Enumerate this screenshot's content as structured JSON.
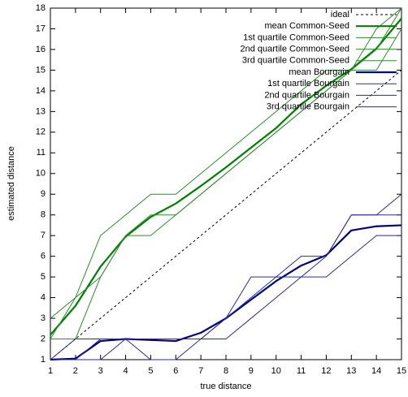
{
  "chart_data": {
    "type": "line",
    "x_label": "true distance",
    "y_label": "estimated distance",
    "x": [
      1,
      2,
      3,
      4,
      5,
      6,
      7,
      8,
      9,
      10,
      11,
      12,
      13,
      14,
      15
    ],
    "xlim": [
      1,
      15
    ],
    "ylim": [
      1,
      18
    ],
    "xticks": [
      1,
      2,
      3,
      4,
      5,
      6,
      7,
      8,
      9,
      10,
      11,
      12,
      13,
      14,
      15
    ],
    "yticks": [
      1,
      2,
      3,
      4,
      5,
      6,
      7,
      8,
      9,
      10,
      11,
      12,
      13,
      14,
      15,
      16,
      17,
      18
    ],
    "legend": "top-right",
    "series": [
      {
        "name": "ideal",
        "color": "#000000",
        "dashed": true,
        "width": 1,
        "values": [
          1,
          2,
          3,
          4,
          5,
          6,
          7,
          8,
          9,
          10,
          11,
          12,
          13,
          14,
          15
        ]
      },
      {
        "name": "mean Common-Seed",
        "color": "#008000",
        "width": 2.2,
        "values": [
          2.2,
          3.6,
          5.5,
          6.95,
          7.9,
          8.55,
          9.4,
          10.3,
          11.25,
          12.2,
          13.35,
          14.25,
          15.05,
          16.05,
          17.5
        ]
      },
      {
        "name": "1st quartile Common-Seed",
        "color": "#2e8b2e",
        "width": 1,
        "values": [
          2,
          2,
          5,
          7,
          7,
          8,
          9,
          10,
          11,
          12,
          13,
          14,
          15,
          15,
          17
        ]
      },
      {
        "name": "2nd quartile Common-Seed",
        "color": "#2e8b2e",
        "width": 1,
        "values": [
          2,
          4,
          5,
          7,
          8,
          8,
          9,
          10,
          11,
          12,
          13,
          14,
          15,
          16,
          18
        ]
      },
      {
        "name": "3rd quartile Common-Seed",
        "color": "#2e8b2e",
        "width": 1,
        "values": [
          3,
          4,
          7,
          8,
          9,
          9,
          10,
          11,
          12,
          13,
          14,
          15,
          15,
          17,
          18
        ]
      },
      {
        "name": "mean Bourgain",
        "color": "#000080",
        "width": 2.2,
        "values": [
          1,
          1.05,
          1.9,
          2,
          1.95,
          1.9,
          2.3,
          3,
          3.9,
          4.8,
          5.55,
          6.05,
          7.25,
          7.45,
          7.5
        ]
      },
      {
        "name": "1st quartile Bourgain",
        "color": "#2a2a9a",
        "width": 1,
        "values": [
          1,
          1,
          1,
          2,
          1,
          1,
          2,
          2,
          3,
          4,
          5,
          5,
          6,
          7,
          7
        ]
      },
      {
        "name": "2nd quartile Bourgain",
        "color": "#2a2a9a",
        "width": 1,
        "values": [
          1,
          1,
          2,
          2,
          2,
          2,
          2,
          3,
          4,
          5,
          5,
          6,
          8,
          8,
          8
        ]
      },
      {
        "name": "3rd quartile Bourgain",
        "color": "#2a2a9a",
        "width": 1,
        "values": [
          1,
          2,
          2,
          2,
          2,
          2,
          2,
          3,
          5,
          5,
          6,
          6,
          8,
          8,
          9
        ]
      }
    ]
  }
}
